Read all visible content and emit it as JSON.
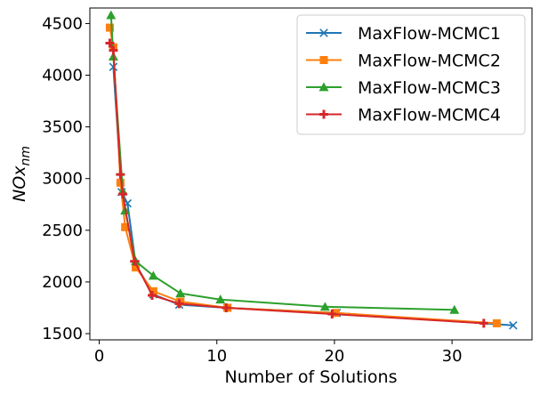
{
  "chart_data": {
    "type": "line",
    "title": "",
    "xlabel": "Number of Solutions",
    "ylabel_base": "NOx",
    "ylabel_sub": "nm",
    "xlim": [
      -0.8,
      36.8
    ],
    "ylim": [
      1440,
      4650
    ],
    "xticks": [
      0,
      10,
      20,
      30
    ],
    "yticks": [
      1500,
      2000,
      2500,
      3000,
      3500,
      4000,
      4500
    ],
    "grid": false,
    "legend_position": "top-right",
    "series": [
      {
        "name": "MaxFlow-MCMC1",
        "color": "#1f77b4",
        "marker": "x",
        "x": [
          1.2,
          1.9,
          2.4,
          3.1,
          4.6,
          6.8,
          10.9,
          20.2,
          35.2
        ],
        "y": [
          4080,
          2870,
          2760,
          2170,
          1880,
          1780,
          1750,
          1700,
          1580
        ]
      },
      {
        "name": "MaxFlow-MCMC2",
        "color": "#ff7f0e",
        "marker": "square",
        "x": [
          0.9,
          1.2,
          1.8,
          2.2,
          3.1,
          4.6,
          6.9,
          10.9,
          20.1,
          33.8
        ],
        "y": [
          4460,
          4270,
          2960,
          2530,
          2140,
          1910,
          1810,
          1750,
          1700,
          1600
        ]
      },
      {
        "name": "MaxFlow-MCMC3",
        "color": "#2ca02c",
        "marker": "triangle",
        "x": [
          1.0,
          1.2,
          2.0,
          2.2,
          3.1,
          4.6,
          6.9,
          10.3,
          19.2,
          30.2
        ],
        "y": [
          4580,
          4180,
          2880,
          2690,
          2200,
          2060,
          1890,
          1830,
          1760,
          1730
        ]
      },
      {
        "name": "MaxFlow-MCMC4",
        "color": "#d62728",
        "marker": "plus",
        "x": [
          0.9,
          1.2,
          1.8,
          2.0,
          3.0,
          4.5,
          6.8,
          10.8,
          19.8,
          32.7
        ],
        "y": [
          4310,
          4240,
          3040,
          2850,
          2200,
          1870,
          1790,
          1750,
          1690,
          1600
        ]
      }
    ]
  }
}
